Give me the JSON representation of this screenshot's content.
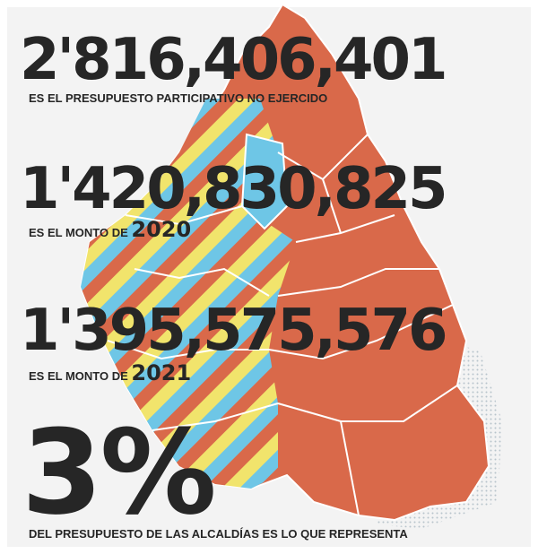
{
  "stats": [
    {
      "value": "2'816,406,401",
      "caption": "ES EL PRESUPUESTO PARTICIPATIVO NO EJERCIDO"
    },
    {
      "value": "1'420,830,825",
      "caption": "ES EL MONTO DE",
      "highlight": "2020"
    },
    {
      "value": "1'395,575,576",
      "caption": "ES EL MONTO DE",
      "highlight": "2021"
    },
    {
      "value": "3%",
      "caption": "DEL PRESUPUESTO DE LAS ALCALDÍAS ES LO QUE REPRESENTA"
    }
  ]
}
